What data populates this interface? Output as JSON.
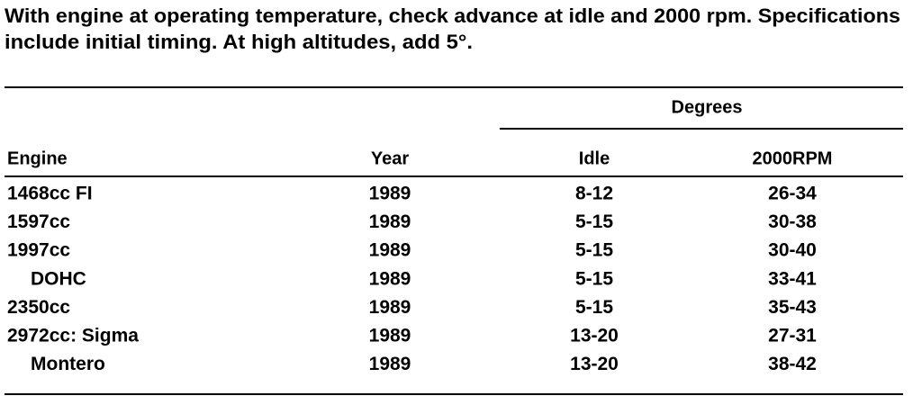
{
  "intro": [
    "With engine at operating temperature, check advance at idle and 2000 rpm. Specifications",
    "include initial timing. At high altitudes, add 5°."
  ],
  "table": {
    "group_header": "Degrees",
    "headers": [
      "Engine",
      "Year",
      "Idle",
      "2000RPM"
    ],
    "rows": [
      [
        "1468cc FI",
        "1989",
        "8-12",
        "26-34"
      ],
      [
        "1597cc",
        "1989",
        "5-15",
        "30-38"
      ],
      [
        "1997cc",
        "1989",
        "5-15",
        "30-40"
      ],
      [
        "DOHC",
        "1989",
        "5-15",
        "33-41"
      ],
      [
        "2350cc",
        "1989",
        "5-15",
        "35-43"
      ],
      [
        "2972cc: Sigma",
        "1989",
        "13-20",
        "27-31"
      ],
      [
        "Montero",
        "1989",
        "13-20",
        "38-42"
      ]
    ]
  }
}
